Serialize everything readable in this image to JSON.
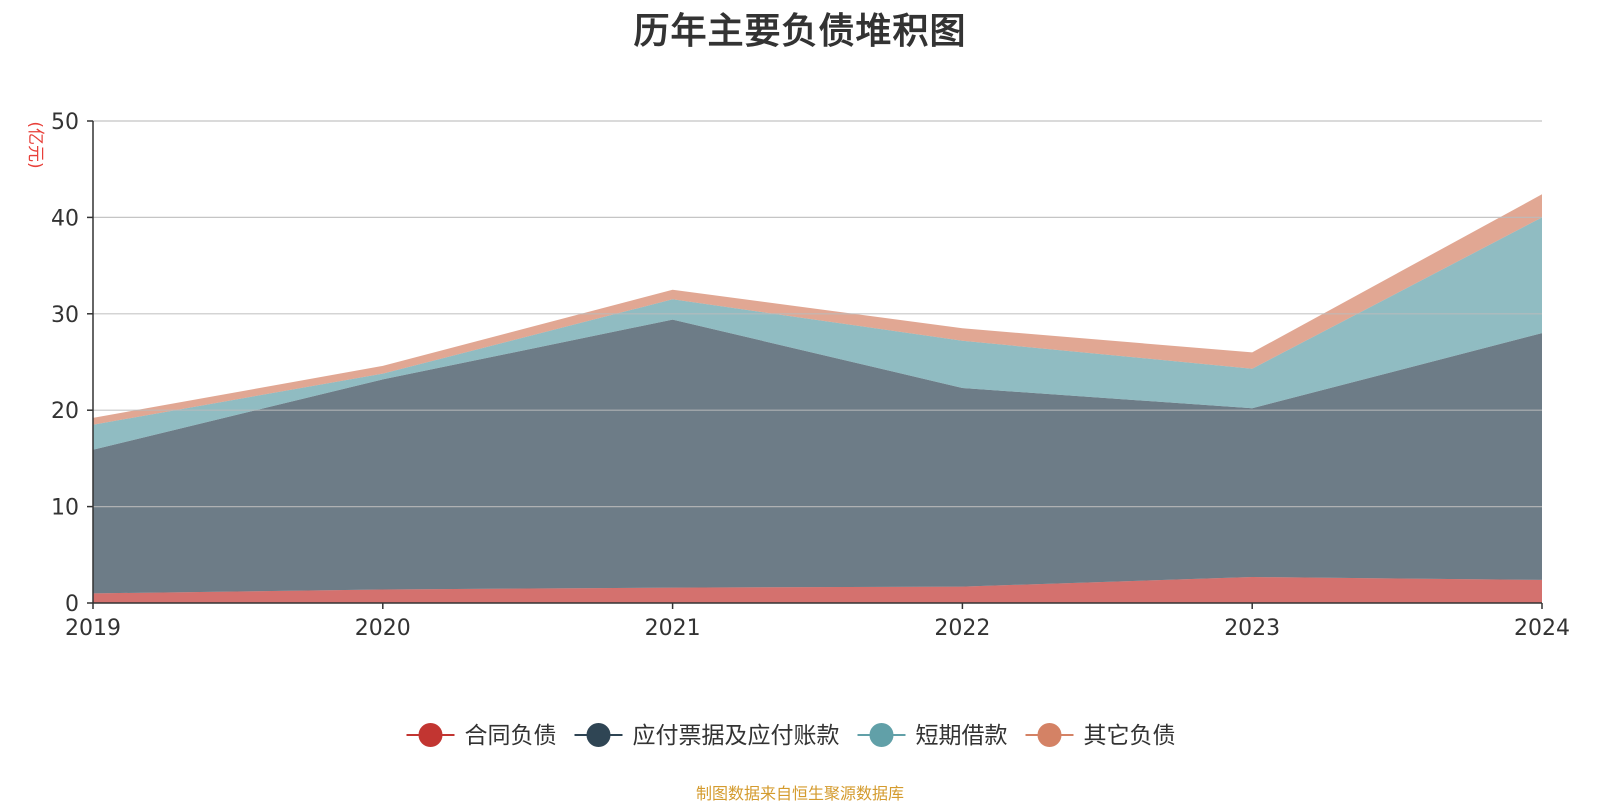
{
  "chart_data": {
    "type": "area",
    "title": "历年主要负债堆积图",
    "unit_label": "(亿元)",
    "x": [
      "2019",
      "2020",
      "2021",
      "2022",
      "2023",
      "2024"
    ],
    "ylim": [
      0,
      50
    ],
    "yticks": [
      0,
      10,
      20,
      30,
      40,
      50
    ],
    "stacked": true,
    "grid": true,
    "legend_position": "bottom",
    "series": [
      {
        "name": "合同负债",
        "color": "#c23531",
        "values": [
          1.0,
          1.4,
          1.6,
          1.7,
          2.7,
          2.4
        ]
      },
      {
        "name": "应付票据及应付账款",
        "color": "#2f4554",
        "values": [
          14.9,
          21.8,
          27.8,
          20.6,
          17.5,
          25.6
        ]
      },
      {
        "name": "短期借款",
        "color": "#61a0a8",
        "values": [
          2.6,
          0.6,
          2.1,
          4.9,
          4.1,
          12.0
        ]
      },
      {
        "name": "其它负债",
        "color": "#d48265",
        "values": [
          0.7,
          0.8,
          1.0,
          1.3,
          1.7,
          2.4
        ]
      }
    ]
  },
  "footer": {
    "source": "制图数据来自恒生聚源数据库"
  }
}
